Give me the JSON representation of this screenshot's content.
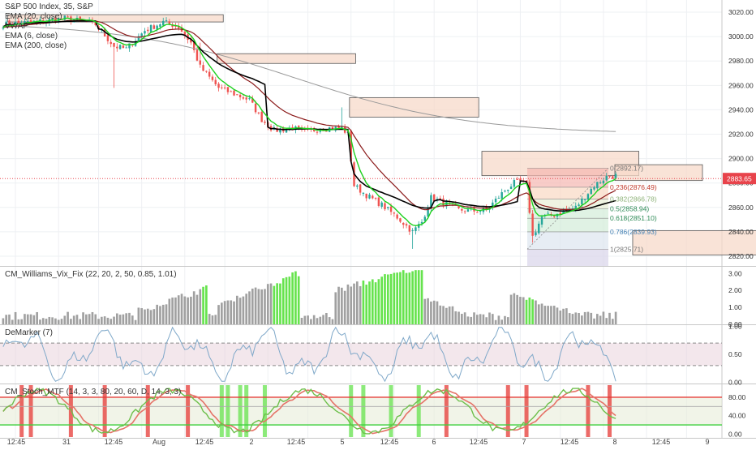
{
  "header": {
    "symbol": "S&P 500 Index, 35, S&P",
    "indicators": [
      "EMA (20, close)",
      "VWAP",
      "EMA (6, close)",
      "EMA (200, close)"
    ]
  },
  "price_tag": {
    "label": "2883.65",
    "value": 2883.65,
    "color": "#e8434b"
  },
  "colors": {
    "up": "#26a69a",
    "down": "#ef5350",
    "ema20": "#8b1a1a",
    "ema6": "#1ed01e",
    "vwap": "#000000",
    "ema200": "#999999",
    "vix_gray": "#a0a0a0",
    "vix_green": "#66e34d"
  },
  "chart_data": [
    {
      "type": "candlestick",
      "series_names": [
        "EMA (20, close)",
        "VWAP",
        "EMA (6, close)",
        "EMA (200, close)"
      ],
      "ylim": [
        2812,
        3030
      ],
      "y_ticks": [
        "3020.00",
        "3000.00",
        "2980.00",
        "2960.00",
        "2940.00",
        "2920.00",
        "2900.00",
        "2880.00",
        "2860.00",
        "2840.00",
        "2820.00"
      ],
      "x_ticks": [
        "12:45",
        "31",
        "12:45",
        "Aug",
        "12:45",
        "2",
        "12:45",
        "5",
        "12:45",
        "6",
        "12:45",
        "7",
        "12:45",
        "8",
        "12:45",
        "9"
      ],
      "close_anchors": [
        [
          0,
          3010
        ],
        [
          10,
          3012
        ],
        [
          20,
          3015
        ],
        [
          27,
          3012
        ],
        [
          30,
          3010
        ],
        [
          36,
          2992
        ],
        [
          40,
          2990
        ],
        [
          46,
          3005
        ],
        [
          52,
          3012
        ],
        [
          57,
          3008
        ],
        [
          61,
          2995
        ],
        [
          64,
          2975
        ],
        [
          70,
          2958
        ],
        [
          76,
          2952
        ],
        [
          80,
          2948
        ],
        [
          84,
          2932
        ],
        [
          88,
          2923
        ],
        [
          94,
          2925
        ],
        [
          98,
          2922
        ],
        [
          104,
          2925
        ],
        [
          110,
          2925
        ],
        [
          112,
          2920
        ],
        [
          114,
          2878
        ],
        [
          118,
          2870
        ],
        [
          123,
          2862
        ],
        [
          128,
          2852
        ],
        [
          133,
          2840
        ],
        [
          136,
          2848
        ],
        [
          139,
          2868
        ],
        [
          143,
          2864
        ],
        [
          148,
          2858
        ],
        [
          152,
          2857
        ],
        [
          157,
          2858
        ],
        [
          163,
          2874
        ],
        [
          166,
          2880
        ],
        [
          168,
          2881
        ],
        [
          170,
          2878
        ],
        [
          172,
          2836
        ],
        [
          175,
          2852
        ],
        [
          180,
          2855
        ],
        [
          186,
          2860
        ],
        [
          192,
          2878
        ],
        [
          196,
          2885
        ],
        [
          199,
          2886
        ]
      ],
      "fib_levels": [
        {
          "label": "0(2892.17)",
          "value": 2892.17
        },
        {
          "label": "0.236(2876.49)",
          "value": 2876.49
        },
        {
          "label": "0.382(2866.78)",
          "value": 2866.78
        },
        {
          "label": "0.5(2858.94)",
          "value": 2858.94
        },
        {
          "label": "0.618(2851.10)",
          "value": 2851.1
        },
        {
          "label": "0.786(2839.93)",
          "value": 2839.93
        },
        {
          "label": "1(2825.71)",
          "value": 2825.71
        }
      ]
    },
    {
      "type": "bar",
      "title": "CM_Williams_Vix_Fix (22, 20, 2, 50, 0.85, 1.01)",
      "ylim": [
        0,
        3.4
      ],
      "y_ticks": [
        "3.00",
        "2.00",
        "1.00",
        "0.00"
      ]
    },
    {
      "type": "line",
      "title": "DeMarker (7)",
      "ylim": [
        -0.02,
        1.02
      ],
      "y_ticks": [
        "1.00",
        "0.50",
        "0.00"
      ]
    },
    {
      "type": "line",
      "title": "CM_Stoch_MTF (14, 3, 3, 80, 20, 60, D, 14, 3, 3)",
      "ylim": [
        -8,
        108
      ],
      "y_ticks": [
        "80.00",
        "40.00",
        "0.00"
      ]
    }
  ]
}
